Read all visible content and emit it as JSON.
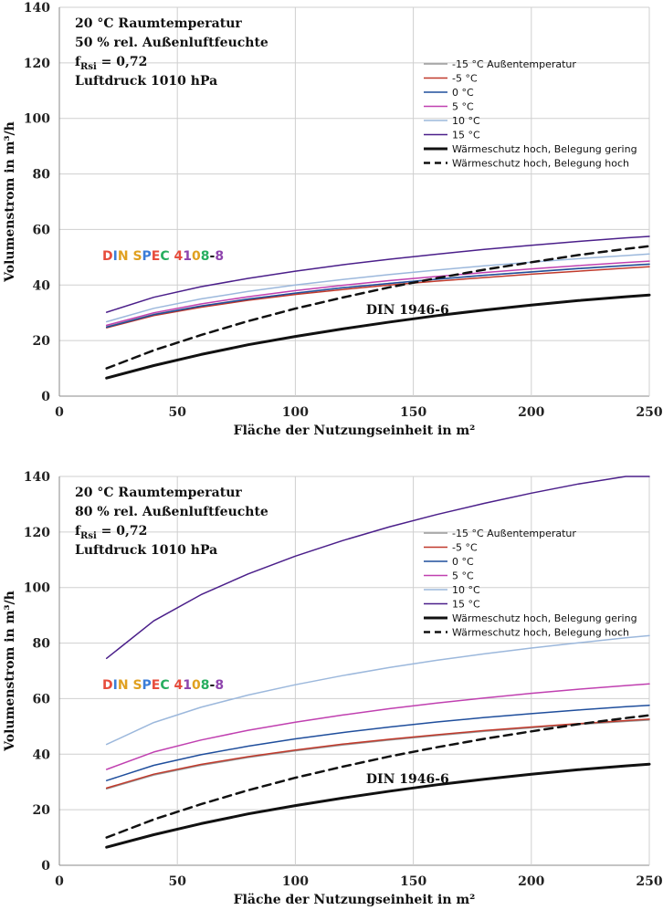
{
  "chart_data": [
    {
      "type": "line",
      "title": "",
      "xlabel": "Fläche der Nutzungseinheit in m²",
      "ylabel": "Volumenstrom in m³/h",
      "xlim": [
        0,
        250
      ],
      "ylim": [
        0,
        140
      ],
      "xticks": [
        "0",
        "50",
        "100",
        "150",
        "200",
        "250"
      ],
      "yticks": [
        "0",
        "20",
        "40",
        "60",
        "80",
        "100",
        "120",
        "140"
      ],
      "grid": true,
      "legend_position": "top-right",
      "info": {
        "line1": "20 °C Raumtemperatur",
        "line2": "50 % rel. Außenluftfeuchte",
        "line3_prefix": "f",
        "line3_sub": "Rsi",
        "line3_rest": " = 0,72",
        "line4": "Luftdruck 1010 hPa"
      },
      "annotations": {
        "spec_label": [
          "D",
          "I",
          "N",
          " ",
          "S",
          "P",
          "E",
          "C",
          " ",
          "4",
          "1",
          "0",
          "8",
          "-",
          "8"
        ],
        "din_label": "DIN 1946-6"
      },
      "x": [
        20,
        40,
        60,
        80,
        100,
        120,
        140,
        160,
        180,
        200,
        220,
        240,
        250
      ],
      "series": [
        {
          "name": "-15 °C Außentemperatur",
          "color": "#999999",
          "width": 1.5,
          "dash": "",
          "values": [
            25,
            29.5,
            32.5,
            35,
            37,
            39,
            40.6,
            42.1,
            43.5,
            44.8,
            46,
            47.1,
            47.6
          ]
        },
        {
          "name": "-5 °C",
          "color": "#c0392b",
          "width": 1.5,
          "dash": "",
          "values": [
            24.6,
            29,
            32,
            34.5,
            36.6,
            38.4,
            40,
            41.4,
            42.7,
            43.9,
            45,
            46.1,
            46.6
          ]
        },
        {
          "name": "0 °C",
          "color": "#1f4e9c",
          "width": 1.5,
          "dash": "",
          "values": [
            24.8,
            29.3,
            32.4,
            34.9,
            37.1,
            39,
            40.6,
            42.1,
            43.5,
            44.7,
            45.9,
            47,
            47.5
          ]
        },
        {
          "name": "5 °C",
          "color": "#c040b0",
          "width": 1.5,
          "dash": "",
          "values": [
            25.5,
            30,
            33.2,
            35.8,
            38,
            39.9,
            41.6,
            43.1,
            44.5,
            45.8,
            47,
            48.1,
            48.6
          ]
        },
        {
          "name": "10 °C",
          "color": "#9cb8dc",
          "width": 1.5,
          "dash": "",
          "values": [
            26.8,
            31.6,
            35,
            37.7,
            40,
            42,
            43.8,
            45.4,
            46.9,
            48.2,
            49.5,
            50.6,
            51.2
          ]
        },
        {
          "name": "15 °C",
          "color": "#4b1f8a",
          "width": 1.5,
          "dash": "",
          "values": [
            30.2,
            35.6,
            39.4,
            42.4,
            45,
            47.3,
            49.3,
            51.1,
            52.8,
            54.3,
            55.7,
            57,
            57.5
          ]
        },
        {
          "name": "Wärmeschutz hoch, Belegung gering",
          "color": "#111111",
          "width": 3,
          "dash": "",
          "values": [
            6.5,
            11,
            15,
            18.5,
            21.5,
            24.2,
            26.7,
            29,
            31,
            32.8,
            34.4,
            35.8,
            36.4
          ]
        },
        {
          "name": "Wärmeschutz hoch, Belegung hoch",
          "color": "#111111",
          "width": 2.5,
          "dash": "9,6",
          "values": [
            10,
            16.5,
            22,
            27,
            31.5,
            35.5,
            39.2,
            42.5,
            45.5,
            48.2,
            50.8,
            53,
            54
          ]
        }
      ]
    },
    {
      "type": "line",
      "title": "",
      "xlabel": "Fläche der Nutzungseinheit in m²",
      "ylabel": "Volumenstrom in m³/h",
      "xlim": [
        0,
        250
      ],
      "ylim": [
        0,
        140
      ],
      "xticks": [
        "0",
        "50",
        "100",
        "150",
        "200",
        "250"
      ],
      "yticks": [
        "0",
        "20",
        "40",
        "60",
        "80",
        "100",
        "120",
        "140"
      ],
      "grid": true,
      "legend_position": "top-right",
      "info": {
        "line1": "20 °C Raumtemperatur",
        "line2": "80 % rel. Außenluftfeuchte",
        "line3_prefix": "f",
        "line3_sub": "Rsi",
        "line3_rest": " = 0,72",
        "line4": "Luftdruck 1010 hPa"
      },
      "annotations": {
        "spec_label": [
          "D",
          "I",
          "N",
          " ",
          "S",
          "P",
          "E",
          "C",
          " ",
          "4",
          "1",
          "0",
          "8",
          "-",
          "8"
        ],
        "din_label": "DIN 1946-6"
      },
      "x": [
        20,
        40,
        60,
        80,
        100,
        120,
        140,
        160,
        180,
        200,
        220,
        240,
        250
      ],
      "series": [
        {
          "name": "-15 °C Außentemperatur",
          "color": "#999999",
          "width": 1.5,
          "dash": "",
          "values": [
            27.5,
            32.5,
            36,
            38.8,
            41.2,
            43.3,
            45.1,
            46.7,
            48.2,
            49.5,
            50.7,
            51.8,
            52.3
          ]
        },
        {
          "name": "-5 °C",
          "color": "#c0392b",
          "width": 1.5,
          "dash": "",
          "values": [
            27.8,
            32.8,
            36.3,
            39.1,
            41.5,
            43.6,
            45.4,
            47,
            48.5,
            49.8,
            51,
            52.1,
            52.6
          ]
        },
        {
          "name": "0 °C",
          "color": "#1f4e9c",
          "width": 1.5,
          "dash": "",
          "values": [
            30.5,
            36,
            39.8,
            42.9,
            45.5,
            47.8,
            49.8,
            51.6,
            53.2,
            54.6,
            55.9,
            57.1,
            57.6
          ]
        },
        {
          "name": "5 °C",
          "color": "#c040b0",
          "width": 1.5,
          "dash": "",
          "values": [
            34.5,
            40.8,
            45.1,
            48.6,
            51.5,
            54.1,
            56.4,
            58.4,
            60.2,
            61.9,
            63.4,
            64.7,
            65.3
          ]
        },
        {
          "name": "10 °C",
          "color": "#9cb8dc",
          "width": 1.5,
          "dash": "",
          "values": [
            43.5,
            51.4,
            56.9,
            61.3,
            65,
            68.3,
            71.2,
            73.8,
            76.1,
            78.2,
            80.1,
            81.9,
            82.7
          ]
        },
        {
          "name": "15 °C",
          "color": "#4b1f8a",
          "width": 1.5,
          "dash": "",
          "values": [
            74.5,
            88,
            97.4,
            104.9,
            111.3,
            116.9,
            121.9,
            126.3,
            130.3,
            134,
            137.3,
            140.4,
            141.8
          ]
        },
        {
          "name": "Wärmeschutz hoch, Belegung gering",
          "color": "#111111",
          "width": 3,
          "dash": "",
          "values": [
            6.5,
            11,
            15,
            18.5,
            21.5,
            24.2,
            26.7,
            29,
            31,
            32.8,
            34.4,
            35.8,
            36.4
          ]
        },
        {
          "name": "Wärmeschutz hoch, Belegung hoch",
          "color": "#111111",
          "width": 2.5,
          "dash": "9,6",
          "values": [
            10,
            16.5,
            22,
            27,
            31.5,
            35.5,
            39.2,
            42.5,
            45.5,
            48.2,
            50.8,
            53,
            54
          ]
        }
      ]
    }
  ],
  "spec_colors": [
    "#e74c3c",
    "#3b7dd8",
    "#e0a020",
    "#111111",
    "#e0a020",
    "#3b7dd8",
    "#e74c3c",
    "#27ae60",
    "#111111",
    "#e74c3c",
    "#8e44ad",
    "#e0a020",
    "#27ae60",
    "#111111",
    "#8e44ad"
  ]
}
